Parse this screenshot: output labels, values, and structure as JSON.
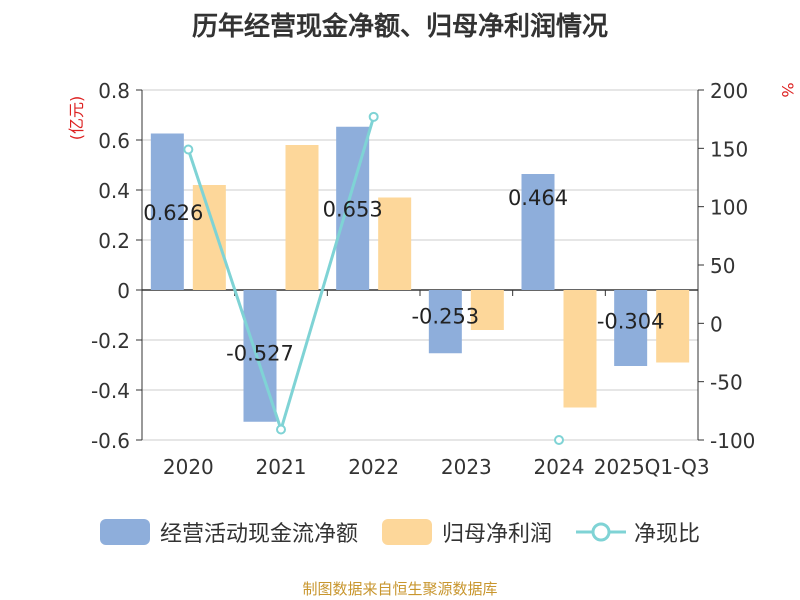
{
  "title": "历年经营现金净额、归母净利润情况",
  "source": "制图数据来自恒生聚源数据库",
  "chart_data": {
    "type": "bar",
    "categories": [
      "2020",
      "2021",
      "2022",
      "2023",
      "2024",
      "2025Q1-Q3"
    ],
    "series": [
      {
        "name": "经营活动现金流净额",
        "type": "bar",
        "axis": "left",
        "color": "#8eaedb",
        "values": [
          0.626,
          -0.527,
          0.653,
          -0.253,
          0.464,
          -0.304
        ],
        "labels": [
          "0.626",
          "-0.527",
          "0.653",
          "-0.253",
          "0.464",
          "-0.304"
        ]
      },
      {
        "name": "归母净利润",
        "type": "bar",
        "axis": "left",
        "color": "#fdd79a",
        "values": [
          0.42,
          0.58,
          0.37,
          -0.16,
          -0.47,
          -0.29
        ]
      },
      {
        "name": "净现比",
        "type": "line",
        "axis": "right",
        "color": "#7fd3d5",
        "values": [
          149,
          -91,
          177,
          null,
          -100,
          null
        ]
      }
    ],
    "left_axis": {
      "label": "(亿元)",
      "ylim": [
        -0.6,
        0.8
      ],
      "ticks": [
        0.8,
        0.6,
        0.4,
        0.2,
        0,
        -0.2,
        -0.4,
        -0.6
      ],
      "tick_labels": [
        "0.8",
        "0.6",
        "0.4",
        "0.2",
        "0",
        "-0.2",
        "-0.4",
        "-0.6"
      ]
    },
    "right_axis": {
      "label": "%",
      "ylim": [
        -100,
        200
      ],
      "ticks": [
        200,
        150,
        100,
        50,
        0,
        -50,
        -100
      ],
      "tick_labels": [
        "200",
        "150",
        "100",
        "50",
        "0",
        "-50",
        "-100"
      ]
    },
    "grid": true,
    "legend_position": "bottom"
  }
}
